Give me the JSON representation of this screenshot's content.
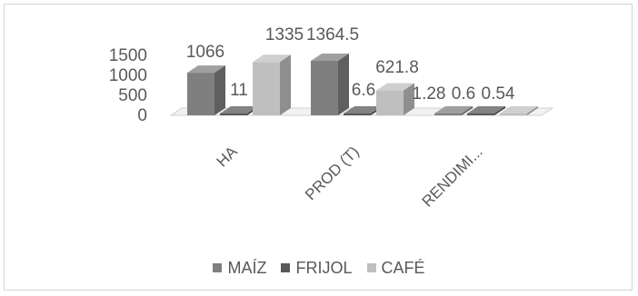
{
  "chart_data": {
    "type": "bar",
    "style": "3d-clustered-column",
    "categories": [
      "HA",
      "PROD (T)",
      "RENDIMI..."
    ],
    "series": [
      {
        "name": "MAÍZ",
        "values": [
          1066,
          1364.5,
          1.28
        ],
        "labels": [
          "1066",
          "1364.5",
          "1.28"
        ],
        "color": "#7f7f7f"
      },
      {
        "name": "FRIJOL",
        "values": [
          11,
          6.6,
          0.6
        ],
        "labels": [
          "11",
          "6.6",
          "0.6"
        ],
        "color": "#595959"
      },
      {
        "name": "CAFÉ",
        "values": [
          1335,
          621.8,
          0.54
        ],
        "labels": [
          "1335",
          "621.8",
          "0.54"
        ],
        "color": "#bfbfbf"
      }
    ],
    "yticks": [
      "0",
      "500",
      "1000",
      "1500"
    ],
    "ylim": [
      0,
      1500
    ],
    "legend_position": "bottom",
    "grid": false
  }
}
